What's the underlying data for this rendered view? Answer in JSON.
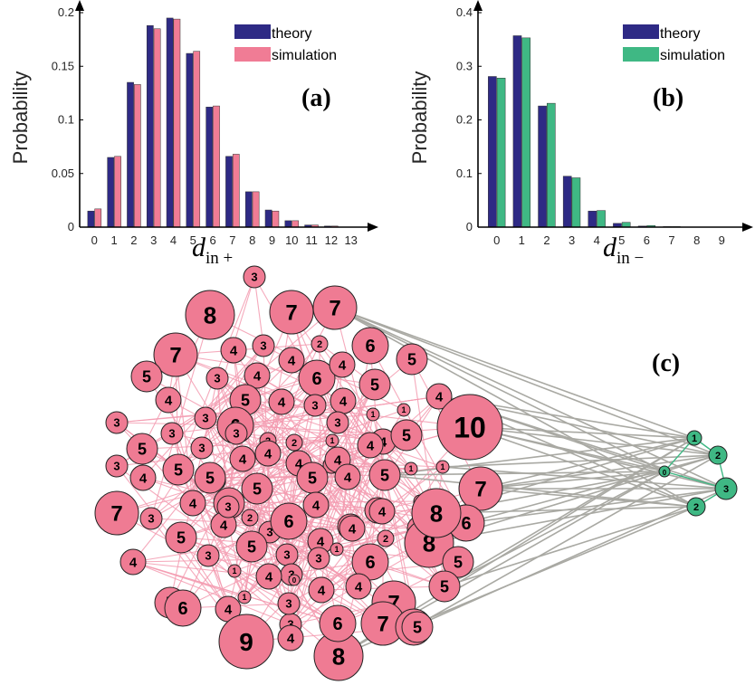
{
  "colors": {
    "theory": "#2e2a85",
    "simulation_a": "#f07c95",
    "simulation_b": "#3fb884",
    "node_pink": "#ef7b93",
    "node_green": "#3fb884",
    "edge_pink": "#f39bb0",
    "edge_gray": "#a9a9a3"
  },
  "chart_data": [
    {
      "type": "bar",
      "panel_label": "(a)",
      "xlabel": "d",
      "xlabel_subscript": "in +",
      "ylabel": "Probability",
      "ylim": [
        0,
        0.2
      ],
      "yticks": [
        "0",
        "0.05",
        "0.1",
        "0.15",
        "0.2"
      ],
      "categories": [
        "0",
        "1",
        "2",
        "3",
        "4",
        "5",
        "6",
        "7",
        "8",
        "9",
        "10",
        "11",
        "12",
        "13"
      ],
      "legend_position": "top-right",
      "series": [
        {
          "name": "theory",
          "values": [
            0.015,
            0.065,
            0.135,
            0.188,
            0.195,
            0.162,
            0.112,
            0.066,
            0.033,
            0.016,
            0.006,
            0.002,
            0.001,
            0.0
          ]
        },
        {
          "name": "simulation",
          "values": [
            0.017,
            0.066,
            0.133,
            0.185,
            0.194,
            0.164,
            0.113,
            0.068,
            0.033,
            0.015,
            0.006,
            0.002,
            0.001,
            0.0
          ]
        }
      ]
    },
    {
      "type": "bar",
      "panel_label": "(b)",
      "xlabel": "d",
      "xlabel_subscript": "in −",
      "ylabel": "Probability",
      "ylim": [
        0,
        0.4
      ],
      "yticks": [
        "0",
        "0.1",
        "0.2",
        "0.3",
        "0.4"
      ],
      "categories": [
        "0",
        "1",
        "2",
        "3",
        "4",
        "5",
        "6",
        "7",
        "8",
        "9"
      ],
      "legend_position": "top-right",
      "series": [
        {
          "name": "theory",
          "values": [
            0.281,
            0.357,
            0.226,
            0.095,
            0.03,
            0.007,
            0.002,
            0.001,
            0.0,
            0.0
          ]
        },
        {
          "name": "simulation",
          "values": [
            0.278,
            0.353,
            0.231,
            0.092,
            0.031,
            0.009,
            0.003,
            0.001,
            0.0,
            0.0
          ]
        }
      ]
    }
  ],
  "network": {
    "panel_label": "(c)",
    "pink_node_labels": [
      "8",
      "7",
      "7",
      "3",
      "4",
      "3",
      "2",
      "6",
      "7",
      "4",
      "5",
      "4",
      "5",
      "3",
      "6",
      "4",
      "5",
      "4",
      "5",
      "4",
      "3",
      "4",
      "4",
      "1",
      "3",
      "6",
      "3",
      "3",
      "1",
      "4",
      "3",
      "5",
      "3",
      "2",
      "2",
      "4",
      "1",
      "4",
      "5",
      "3",
      "4",
      "5",
      "2",
      "4",
      "2",
      "1",
      "4",
      "1",
      "5",
      "10",
      "3",
      "4",
      "5",
      "4",
      "5",
      "5",
      "4",
      "4",
      "1",
      "7",
      "4",
      "5",
      "3",
      "4",
      "4",
      "4",
      "4",
      "7",
      "3",
      "3",
      "2",
      "5",
      "6",
      "4",
      "4",
      "3",
      "5",
      "3",
      "1",
      "2",
      "8",
      "6",
      "6",
      "5",
      "3",
      "3",
      "3",
      "4",
      "4",
      "1",
      "0",
      "8",
      "7",
      "6",
      "4",
      "1",
      "3",
      "4",
      "4",
      "5",
      "5",
      "6",
      "7",
      "8",
      "9",
      "4",
      "6",
      "5"
    ],
    "green_node_labels": [
      "1",
      "2",
      "0",
      "3",
      "2"
    ]
  }
}
